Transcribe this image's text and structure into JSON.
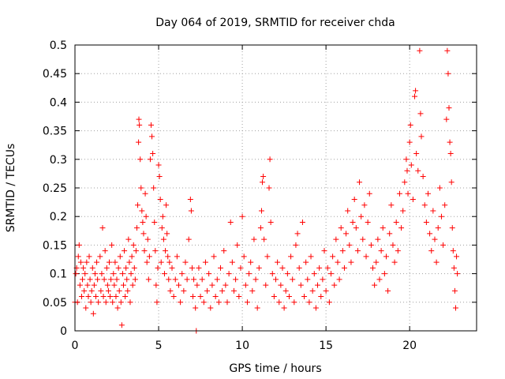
{
  "chart_data": {
    "type": "scatter",
    "title": "Day 064 of 2019, SRMTID for receiver chda",
    "xlabel": "GPS time / hours",
    "ylabel": "SRMTID / TECUs",
    "xlim": [
      0,
      24
    ],
    "ylim": [
      0,
      0.5
    ],
    "xticks": [
      0,
      5,
      10,
      15,
      20
    ],
    "xtick_labels": [
      "0",
      "5",
      "10",
      "15",
      "20"
    ],
    "yticks": [
      0,
      0.05,
      0.1,
      0.15,
      0.2,
      0.25,
      0.3,
      0.35,
      0.4,
      0.45,
      0.5
    ],
    "ytick_labels": [
      "0",
      "0.05",
      "0.1",
      "0.15",
      "0.2",
      "0.25",
      "0.3",
      "0.35",
      "0.4",
      "0.45",
      "0.5"
    ],
    "grid": true,
    "marker": "+",
    "color": "#ff0000",
    "series": [
      {
        "name": "SRMTID",
        "points": [
          [
            0.0,
            0.05
          ],
          [
            0.05,
            0.1
          ],
          [
            0.1,
            0.11
          ],
          [
            0.15,
            0.05
          ],
          [
            0.2,
            0.13
          ],
          [
            0.25,
            0.15
          ],
          [
            0.3,
            0.08
          ],
          [
            0.35,
            0.12
          ],
          [
            0.4,
            0.06
          ],
          [
            0.45,
            0.09
          ],
          [
            0.5,
            0.11
          ],
          [
            0.55,
            0.07
          ],
          [
            0.6,
            0.1
          ],
          [
            0.65,
            0.04
          ],
          [
            0.7,
            0.12
          ],
          [
            0.75,
            0.08
          ],
          [
            0.8,
            0.06
          ],
          [
            0.85,
            0.13
          ],
          [
            0.9,
            0.09
          ],
          [
            0.95,
            0.05
          ],
          [
            1.0,
            0.07
          ],
          [
            1.05,
            0.11
          ],
          [
            1.1,
            0.03
          ],
          [
            1.15,
            0.08
          ],
          [
            1.2,
            0.1
          ],
          [
            1.25,
            0.06
          ],
          [
            1.3,
            0.12
          ],
          [
            1.35,
            0.09
          ],
          [
            1.4,
            0.05
          ],
          [
            1.5,
            0.13
          ],
          [
            1.55,
            0.07
          ],
          [
            1.6,
            0.1
          ],
          [
            1.65,
            0.18
          ],
          [
            1.7,
            0.06
          ],
          [
            1.75,
            0.09
          ],
          [
            1.8,
            0.14
          ],
          [
            1.85,
            0.05
          ],
          [
            1.9,
            0.11
          ],
          [
            1.95,
            0.08
          ],
          [
            2.0,
            0.07
          ],
          [
            2.05,
            0.12
          ],
          [
            2.1,
            0.06
          ],
          [
            2.15,
            0.09
          ],
          [
            2.2,
            0.15
          ],
          [
            2.25,
            0.05
          ],
          [
            2.3,
            0.1
          ],
          [
            2.35,
            0.08
          ],
          [
            2.4,
            0.12
          ],
          [
            2.45,
            0.06
          ],
          [
            2.5,
            0.09
          ],
          [
            2.55,
            0.04
          ],
          [
            2.6,
            0.11
          ],
          [
            2.65,
            0.07
          ],
          [
            2.7,
            0.13
          ],
          [
            2.75,
            0.05
          ],
          [
            2.8,
            0.01
          ],
          [
            2.85,
            0.1
          ],
          [
            2.9,
            0.08
          ],
          [
            2.95,
            0.14
          ],
          [
            3.0,
            0.06
          ],
          [
            3.05,
            0.11
          ],
          [
            3.1,
            0.09
          ],
          [
            3.15,
            0.07
          ],
          [
            3.2,
            0.16
          ],
          [
            3.25,
            0.12
          ],
          [
            3.3,
            0.05
          ],
          [
            3.35,
            0.1
          ],
          [
            3.4,
            0.13
          ],
          [
            3.45,
            0.08
          ],
          [
            3.5,
            0.15
          ],
          [
            3.55,
            0.11
          ],
          [
            3.6,
            0.09
          ],
          [
            3.65,
            0.14
          ],
          [
            3.7,
            0.18
          ],
          [
            3.75,
            0.22
          ],
          [
            3.8,
            0.33
          ],
          [
            3.82,
            0.37
          ],
          [
            3.85,
            0.36
          ],
          [
            3.9,
            0.3
          ],
          [
            3.95,
            0.25
          ],
          [
            4.0,
            0.21
          ],
          [
            4.05,
            0.19
          ],
          [
            4.1,
            0.17
          ],
          [
            4.15,
            0.14
          ],
          [
            4.2,
            0.24
          ],
          [
            4.25,
            0.2
          ],
          [
            4.3,
            0.12
          ],
          [
            4.35,
            0.16
          ],
          [
            4.4,
            0.09
          ],
          [
            4.45,
            0.13
          ],
          [
            4.5,
            0.3
          ],
          [
            4.55,
            0.36
          ],
          [
            4.6,
            0.34
          ],
          [
            4.65,
            0.31
          ],
          [
            4.7,
            0.25
          ],
          [
            4.75,
            0.19
          ],
          [
            4.8,
            0.14
          ],
          [
            4.85,
            0.08
          ],
          [
            4.9,
            0.05
          ],
          [
            4.95,
            0.11
          ],
          [
            5.0,
            0.29
          ],
          [
            5.05,
            0.27
          ],
          [
            5.1,
            0.23
          ],
          [
            5.15,
            0.12
          ],
          [
            5.2,
            0.18
          ],
          [
            5.25,
            0.2
          ],
          [
            5.3,
            0.16
          ],
          [
            5.35,
            0.1
          ],
          [
            5.4,
            0.14
          ],
          [
            5.45,
            0.22
          ],
          [
            5.5,
            0.17
          ],
          [
            5.55,
            0.13
          ],
          [
            5.6,
            0.09
          ],
          [
            5.65,
            0.12
          ],
          [
            5.7,
            0.07
          ],
          [
            5.8,
            0.11
          ],
          [
            5.9,
            0.06
          ],
          [
            6.0,
            0.09
          ],
          [
            6.1,
            0.13
          ],
          [
            6.2,
            0.08
          ],
          [
            6.3,
            0.05
          ],
          [
            6.4,
            0.1
          ],
          [
            6.5,
            0.07
          ],
          [
            6.6,
            0.12
          ],
          [
            6.7,
            0.09
          ],
          [
            6.8,
            0.16
          ],
          [
            6.9,
            0.23
          ],
          [
            6.95,
            0.21
          ],
          [
            7.0,
            0.11
          ],
          [
            7.05,
            0.06
          ],
          [
            7.1,
            0.09
          ],
          [
            7.2,
            0.04
          ],
          [
            7.25,
            0.0
          ],
          [
            7.3,
            0.08
          ],
          [
            7.4,
            0.11
          ],
          [
            7.5,
            0.06
          ],
          [
            7.6,
            0.09
          ],
          [
            7.7,
            0.05
          ],
          [
            7.8,
            0.12
          ],
          [
            7.9,
            0.07
          ],
          [
            8.0,
            0.1
          ],
          [
            8.1,
            0.04
          ],
          [
            8.2,
            0.08
          ],
          [
            8.3,
            0.13
          ],
          [
            8.4,
            0.06
          ],
          [
            8.5,
            0.09
          ],
          [
            8.6,
            0.05
          ],
          [
            8.7,
            0.11
          ],
          [
            8.8,
            0.07
          ],
          [
            8.9,
            0.14
          ],
          [
            9.0,
            0.08
          ],
          [
            9.1,
            0.05
          ],
          [
            9.2,
            0.1
          ],
          [
            9.3,
            0.19
          ],
          [
            9.4,
            0.12
          ],
          [
            9.5,
            0.07
          ],
          [
            9.6,
            0.09
          ],
          [
            9.7,
            0.15
          ],
          [
            9.8,
            0.06
          ],
          [
            9.9,
            0.11
          ],
          [
            10.0,
            0.2
          ],
          [
            10.1,
            0.13
          ],
          [
            10.2,
            0.08
          ],
          [
            10.3,
            0.05
          ],
          [
            10.4,
            0.1
          ],
          [
            10.5,
            0.12
          ],
          [
            10.6,
            0.07
          ],
          [
            10.7,
            0.16
          ],
          [
            10.8,
            0.09
          ],
          [
            10.9,
            0.04
          ],
          [
            11.0,
            0.11
          ],
          [
            11.1,
            0.18
          ],
          [
            11.15,
            0.21
          ],
          [
            11.2,
            0.26
          ],
          [
            11.25,
            0.27
          ],
          [
            11.3,
            0.16
          ],
          [
            11.4,
            0.08
          ],
          [
            11.5,
            0.13
          ],
          [
            11.6,
            0.25
          ],
          [
            11.65,
            0.3
          ],
          [
            11.7,
            0.19
          ],
          [
            11.8,
            0.1
          ],
          [
            11.9,
            0.06
          ],
          [
            12.0,
            0.09
          ],
          [
            12.1,
            0.12
          ],
          [
            12.2,
            0.05
          ],
          [
            12.3,
            0.08
          ],
          [
            12.4,
            0.11
          ],
          [
            12.5,
            0.04
          ],
          [
            12.6,
            0.07
          ],
          [
            12.7,
            0.1
          ],
          [
            12.8,
            0.06
          ],
          [
            12.9,
            0.13
          ],
          [
            13.0,
            0.09
          ],
          [
            13.1,
            0.05
          ],
          [
            13.2,
            0.15
          ],
          [
            13.3,
            0.17
          ],
          [
            13.4,
            0.11
          ],
          [
            13.5,
            0.08
          ],
          [
            13.6,
            0.19
          ],
          [
            13.7,
            0.06
          ],
          [
            13.8,
            0.12
          ],
          [
            13.9,
            0.09
          ],
          [
            14.0,
            0.05
          ],
          [
            14.1,
            0.13
          ],
          [
            14.2,
            0.07
          ],
          [
            14.3,
            0.1
          ],
          [
            14.4,
            0.04
          ],
          [
            14.5,
            0.08
          ],
          [
            14.6,
            0.11
          ],
          [
            14.7,
            0.06
          ],
          [
            14.8,
            0.09
          ],
          [
            14.9,
            0.14
          ],
          [
            15.0,
            0.07
          ],
          [
            15.1,
            0.11
          ],
          [
            15.2,
            0.05
          ],
          [
            15.3,
            0.1
          ],
          [
            15.4,
            0.13
          ],
          [
            15.5,
            0.08
          ],
          [
            15.6,
            0.16
          ],
          [
            15.7,
            0.12
          ],
          [
            15.8,
            0.09
          ],
          [
            15.9,
            0.18
          ],
          [
            16.0,
            0.14
          ],
          [
            16.1,
            0.11
          ],
          [
            16.2,
            0.17
          ],
          [
            16.3,
            0.21
          ],
          [
            16.4,
            0.15
          ],
          [
            16.5,
            0.12
          ],
          [
            16.6,
            0.19
          ],
          [
            16.7,
            0.23
          ],
          [
            16.8,
            0.18
          ],
          [
            16.9,
            0.14
          ],
          [
            17.0,
            0.26
          ],
          [
            17.1,
            0.2
          ],
          [
            17.2,
            0.16
          ],
          [
            17.3,
            0.22
          ],
          [
            17.4,
            0.13
          ],
          [
            17.5,
            0.19
          ],
          [
            17.6,
            0.24
          ],
          [
            17.7,
            0.15
          ],
          [
            17.8,
            0.11
          ],
          [
            17.9,
            0.08
          ],
          [
            18.0,
            0.12
          ],
          [
            18.1,
            0.16
          ],
          [
            18.2,
            0.09
          ],
          [
            18.3,
            0.14
          ],
          [
            18.4,
            0.18
          ],
          [
            18.5,
            0.1
          ],
          [
            18.6,
            0.13
          ],
          [
            18.7,
            0.07
          ],
          [
            18.8,
            0.17
          ],
          [
            18.9,
            0.22
          ],
          [
            19.0,
            0.15
          ],
          [
            19.1,
            0.12
          ],
          [
            19.2,
            0.19
          ],
          [
            19.3,
            0.14
          ],
          [
            19.4,
            0.24
          ],
          [
            19.5,
            0.18
          ],
          [
            19.6,
            0.21
          ],
          [
            19.7,
            0.26
          ],
          [
            19.8,
            0.3
          ],
          [
            19.85,
            0.28
          ],
          [
            19.9,
            0.24
          ],
          [
            20.0,
            0.33
          ],
          [
            20.05,
            0.36
          ],
          [
            20.1,
            0.29
          ],
          [
            20.2,
            0.23
          ],
          [
            20.3,
            0.41
          ],
          [
            20.35,
            0.42
          ],
          [
            20.4,
            0.31
          ],
          [
            20.5,
            0.28
          ],
          [
            20.6,
            0.49
          ],
          [
            20.65,
            0.38
          ],
          [
            20.7,
            0.34
          ],
          [
            20.8,
            0.27
          ],
          [
            20.9,
            0.22
          ],
          [
            21.0,
            0.19
          ],
          [
            21.1,
            0.24
          ],
          [
            21.2,
            0.17
          ],
          [
            21.3,
            0.14
          ],
          [
            21.4,
            0.21
          ],
          [
            21.5,
            0.16
          ],
          [
            21.6,
            0.12
          ],
          [
            21.7,
            0.18
          ],
          [
            21.8,
            0.25
          ],
          [
            21.9,
            0.2
          ],
          [
            22.0,
            0.15
          ],
          [
            22.1,
            0.22
          ],
          [
            22.2,
            0.37
          ],
          [
            22.25,
            0.49
          ],
          [
            22.3,
            0.45
          ],
          [
            22.35,
            0.39
          ],
          [
            22.4,
            0.33
          ],
          [
            22.45,
            0.31
          ],
          [
            22.5,
            0.26
          ],
          [
            22.55,
            0.18
          ],
          [
            22.6,
            0.14
          ],
          [
            22.65,
            0.11
          ],
          [
            22.7,
            0.07
          ],
          [
            22.75,
            0.04
          ],
          [
            22.8,
            0.13
          ],
          [
            22.85,
            0.1
          ]
        ]
      }
    ]
  }
}
